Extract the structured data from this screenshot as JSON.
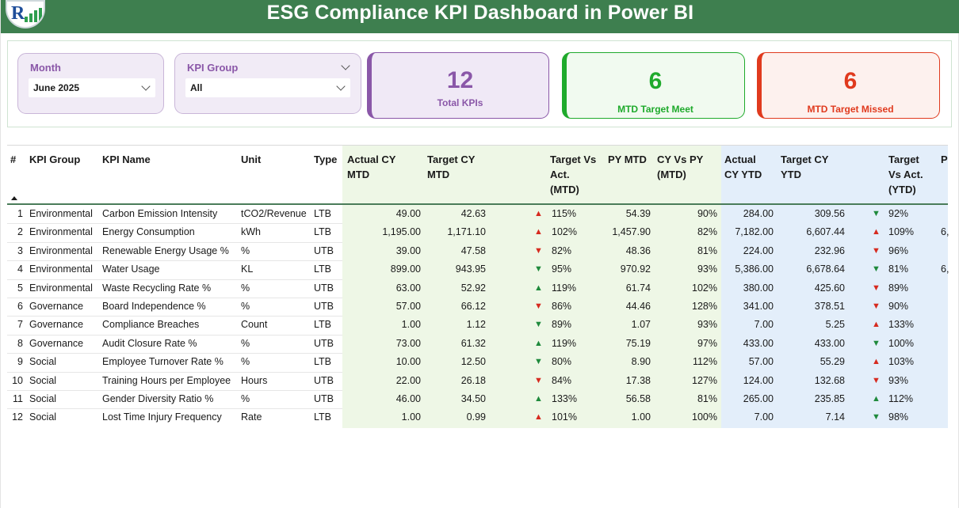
{
  "header": {
    "title": "ESG Compliance KPI Dashboard in Power BI"
  },
  "colors": {
    "header_bg": "#3e7f4f",
    "slicer_label": "#8a57a8",
    "purple": "#8a57a8",
    "green": "#1faa2c",
    "red": "#e03a1e",
    "up_arrow": "#d62a1f",
    "down_arrow": "#1f8a3c",
    "mtd_band": "#eef7e6",
    "ytd_band": "#e3eefa"
  },
  "slicers": {
    "month": {
      "label": "Month",
      "value": "June 2025"
    },
    "kpi_group": {
      "label": "KPI Group",
      "value": "All"
    }
  },
  "cards": {
    "total": {
      "value": "12",
      "label": "Total KPIs"
    },
    "meet": {
      "value": "6",
      "label": "MTD Target Meet"
    },
    "missed": {
      "value": "6",
      "label": "MTD Target Missed"
    }
  },
  "table": {
    "headers": {
      "num": "#",
      "group": "KPI Group",
      "name": "KPI Name",
      "unit": "Unit",
      "type": "Type",
      "actual_mtd": [
        "Actual CY",
        "MTD"
      ],
      "target_mtd": [
        "Target CY",
        "MTD"
      ],
      "tva_mtd": [
        "Target Vs",
        "Act.",
        "(MTD)"
      ],
      "py_mtd": "PY MTD",
      "cy_vs_py": [
        "CY Vs PY",
        "(MTD)"
      ],
      "actual_ytd": [
        "Actual",
        "CY YTD"
      ],
      "target_ytd": [
        "Target CY",
        "YTD"
      ],
      "tva_ytd": [
        "Target",
        "Vs Act.",
        "(YTD)"
      ],
      "extra": "P"
    },
    "rows": [
      {
        "n": "1",
        "group": "Environmental",
        "name": "Carbon Emission Intensity",
        "unit": "tCO2/Revenue",
        "type": "LTB",
        "act_mtd": "49.00",
        "tgt_mtd": "42.63",
        "mtd_dir": "up",
        "tva_mtd": "115%",
        "py_mtd": "54.39",
        "cy_py": "90%",
        "act_ytd": "284.00",
        "tgt_ytd": "309.56",
        "ytd_dir": "down",
        "tva_ytd": "92%",
        "extra": ""
      },
      {
        "n": "2",
        "group": "Environmental",
        "name": "Energy Consumption",
        "unit": "kWh",
        "type": "LTB",
        "act_mtd": "1,195.00",
        "tgt_mtd": "1,171.10",
        "mtd_dir": "up",
        "tva_mtd": "102%",
        "py_mtd": "1,457.90",
        "cy_py": "82%",
        "act_ytd": "7,182.00",
        "tgt_ytd": "6,607.44",
        "ytd_dir": "up",
        "tva_ytd": "109%",
        "extra": "6,"
      },
      {
        "n": "3",
        "group": "Environmental",
        "name": "Renewable Energy Usage %",
        "unit": "%",
        "type": "UTB",
        "act_mtd": "39.00",
        "tgt_mtd": "47.58",
        "mtd_dir": "up-red-down",
        "tva_mtd": "82%",
        "py_mtd": "48.36",
        "cy_py": "81%",
        "act_ytd": "224.00",
        "tgt_ytd": "232.96",
        "ytd_dir": "down-red",
        "tva_ytd": "96%",
        "extra": ""
      },
      {
        "n": "4",
        "group": "Environmental",
        "name": "Water Usage",
        "unit": "KL",
        "type": "LTB",
        "act_mtd": "899.00",
        "tgt_mtd": "943.95",
        "mtd_dir": "down",
        "tva_mtd": "95%",
        "py_mtd": "970.92",
        "cy_py": "93%",
        "act_ytd": "5,386.00",
        "tgt_ytd": "6,678.64",
        "ytd_dir": "down",
        "tva_ytd": "81%",
        "extra": "6,"
      },
      {
        "n": "5",
        "group": "Environmental",
        "name": "Waste Recycling Rate %",
        "unit": "%",
        "type": "UTB",
        "act_mtd": "63.00",
        "tgt_mtd": "52.92",
        "mtd_dir": "up-green",
        "tva_mtd": "119%",
        "py_mtd": "61.74",
        "cy_py": "102%",
        "act_ytd": "380.00",
        "tgt_ytd": "425.60",
        "ytd_dir": "down-red",
        "tva_ytd": "89%",
        "extra": ""
      },
      {
        "n": "6",
        "group": "Governance",
        "name": "Board Independence %",
        "unit": "%",
        "type": "UTB",
        "act_mtd": "57.00",
        "tgt_mtd": "66.12",
        "mtd_dir": "down-red",
        "tva_mtd": "86%",
        "py_mtd": "44.46",
        "cy_py": "128%",
        "act_ytd": "341.00",
        "tgt_ytd": "378.51",
        "ytd_dir": "down-red",
        "tva_ytd": "90%",
        "extra": ""
      },
      {
        "n": "7",
        "group": "Governance",
        "name": "Compliance Breaches",
        "unit": "Count",
        "type": "LTB",
        "act_mtd": "1.00",
        "tgt_mtd": "1.12",
        "mtd_dir": "down",
        "tva_mtd": "89%",
        "py_mtd": "1.07",
        "cy_py": "93%",
        "act_ytd": "7.00",
        "tgt_ytd": "5.25",
        "ytd_dir": "up",
        "tva_ytd": "133%",
        "extra": ""
      },
      {
        "n": "8",
        "group": "Governance",
        "name": "Audit Closure Rate %",
        "unit": "%",
        "type": "UTB",
        "act_mtd": "73.00",
        "tgt_mtd": "61.32",
        "mtd_dir": "up-green",
        "tva_mtd": "119%",
        "py_mtd": "75.19",
        "cy_py": "97%",
        "act_ytd": "433.00",
        "tgt_ytd": "433.00",
        "ytd_dir": "down",
        "tva_ytd": "100%",
        "extra": ""
      },
      {
        "n": "9",
        "group": "Social",
        "name": "Employee Turnover Rate %",
        "unit": "%",
        "type": "LTB",
        "act_mtd": "10.00",
        "tgt_mtd": "12.50",
        "mtd_dir": "down",
        "tva_mtd": "80%",
        "py_mtd": "8.90",
        "cy_py": "112%",
        "act_ytd": "57.00",
        "tgt_ytd": "55.29",
        "ytd_dir": "up",
        "tva_ytd": "103%",
        "extra": ""
      },
      {
        "n": "10",
        "group": "Social",
        "name": "Training Hours per Employee",
        "unit": "Hours",
        "type": "UTB",
        "act_mtd": "22.00",
        "tgt_mtd": "26.18",
        "mtd_dir": "down-red",
        "tva_mtd": "84%",
        "py_mtd": "17.38",
        "cy_py": "127%",
        "act_ytd": "124.00",
        "tgt_ytd": "132.68",
        "ytd_dir": "down-red",
        "tva_ytd": "93%",
        "extra": ""
      },
      {
        "n": "11",
        "group": "Social",
        "name": "Gender Diversity Ratio %",
        "unit": "%",
        "type": "UTB",
        "act_mtd": "46.00",
        "tgt_mtd": "34.50",
        "mtd_dir": "up-green",
        "tva_mtd": "133%",
        "py_mtd": "56.58",
        "cy_py": "81%",
        "act_ytd": "265.00",
        "tgt_ytd": "235.85",
        "ytd_dir": "up-green",
        "tva_ytd": "112%",
        "extra": ""
      },
      {
        "n": "12",
        "group": "Social",
        "name": "Lost Time Injury Frequency",
        "unit": "Rate",
        "type": "LTB",
        "act_mtd": "1.00",
        "tgt_mtd": "0.99",
        "mtd_dir": "up",
        "tva_mtd": "101%",
        "py_mtd": "1.00",
        "cy_py": "100%",
        "act_ytd": "7.00",
        "tgt_ytd": "7.14",
        "ytd_dir": "down",
        "tva_ytd": "98%",
        "extra": ""
      }
    ]
  }
}
